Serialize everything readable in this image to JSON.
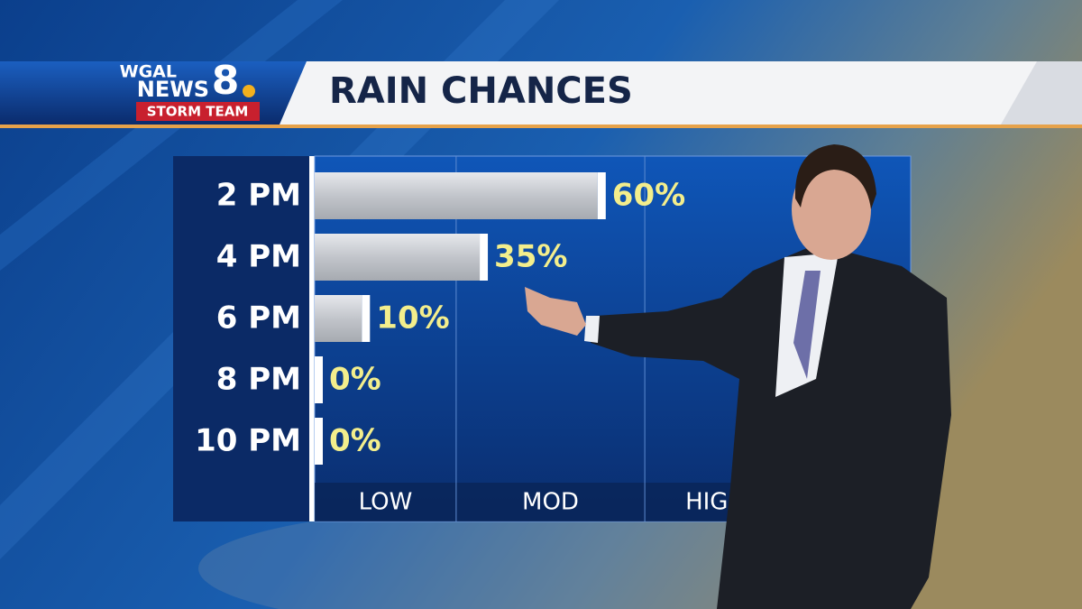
{
  "brand": {
    "line1": "WGAL",
    "line2": "NEWS",
    "number": "8",
    "team": "STORM TEAM"
  },
  "chart_data": {
    "type": "bar",
    "orientation": "horizontal",
    "title": "RAIN CHANCES",
    "categories": [
      "2 PM",
      "4 PM",
      "6 PM",
      "8 PM",
      "10 PM"
    ],
    "values": [
      60,
      35,
      10,
      0,
      0
    ],
    "value_labels": [
      "60%",
      "35%",
      "10%",
      "0%",
      "0%"
    ],
    "color": "#c9ccd2",
    "label_color": "#f3ee8c",
    "xlim": [
      0,
      100
    ],
    "zones": {
      "labels": [
        "LOW",
        "MOD",
        "HIGH"
      ],
      "bounds": [
        30,
        70
      ]
    }
  }
}
